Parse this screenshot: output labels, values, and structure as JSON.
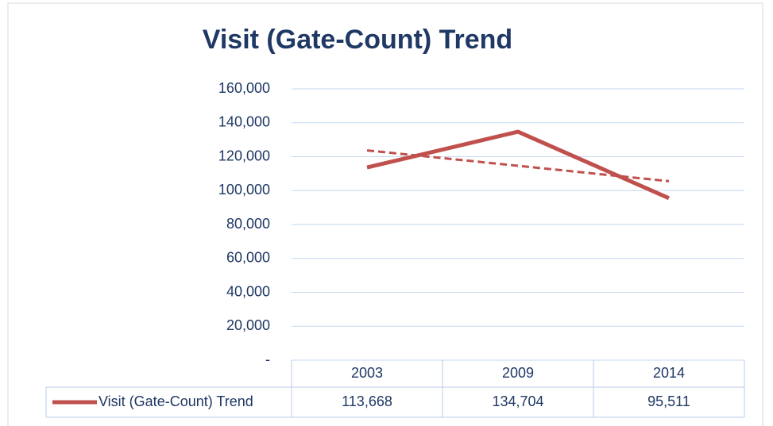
{
  "chart_data": {
    "type": "line",
    "title": "Visit (Gate-Count) Trend",
    "categories": [
      "2003",
      "2009",
      "2014"
    ],
    "series": [
      {
        "name": "Visit (Gate-Count) Trend",
        "color": "#c0504d",
        "values": [
          113668,
          134704,
          95511
        ],
        "value_labels": [
          "113,668",
          "134,704",
          "95,511"
        ]
      }
    ],
    "trendline": "linear",
    "ylim": [
      0,
      160000
    ],
    "yticks": [
      {
        "value": 0,
        "label": "-"
      },
      {
        "value": 20000,
        "label": "20,000"
      },
      {
        "value": 40000,
        "label": "40,000"
      },
      {
        "value": 60000,
        "label": "60,000"
      },
      {
        "value": 80000,
        "label": "80,000"
      },
      {
        "value": 100000,
        "label": "100,000"
      },
      {
        "value": 120000,
        "label": "120,000"
      },
      {
        "value": 140000,
        "label": "140,000"
      },
      {
        "value": 160000,
        "label": "160,000"
      }
    ],
    "grid": true
  }
}
